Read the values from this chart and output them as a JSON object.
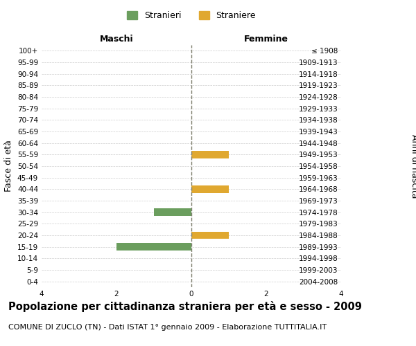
{
  "age_groups": [
    "100+",
    "95-99",
    "90-94",
    "85-89",
    "80-84",
    "75-79",
    "70-74",
    "65-69",
    "60-64",
    "55-59",
    "50-54",
    "45-49",
    "40-44",
    "35-39",
    "30-34",
    "25-29",
    "20-24",
    "15-19",
    "10-14",
    "5-9",
    "0-4"
  ],
  "birth_years": [
    "≤ 1908",
    "1909-1913",
    "1914-1918",
    "1919-1923",
    "1924-1928",
    "1929-1933",
    "1934-1938",
    "1939-1943",
    "1944-1948",
    "1949-1953",
    "1954-1958",
    "1959-1963",
    "1964-1968",
    "1969-1973",
    "1974-1978",
    "1979-1983",
    "1984-1988",
    "1989-1993",
    "1994-1998",
    "1999-2003",
    "2004-2008"
  ],
  "maschi_stranieri": [
    0,
    0,
    0,
    0,
    0,
    0,
    0,
    0,
    0,
    0,
    0,
    0,
    0,
    0,
    1,
    0,
    0,
    2,
    0,
    0,
    0
  ],
  "femmine_straniere": [
    0,
    0,
    0,
    0,
    0,
    0,
    0,
    0,
    0,
    1,
    0,
    0,
    1,
    0,
    0,
    0,
    1,
    0,
    0,
    0,
    0
  ],
  "color_maschi": "#6b9e5e",
  "color_femmine": "#e0a830",
  "xlim": 4,
  "title": "Popolazione per cittadinanza straniera per età e sesso - 2009",
  "subtitle": "COMUNE DI ZUCLO (TN) - Dati ISTAT 1° gennaio 2009 - Elaborazione TUTTITALIA.IT",
  "ylabel_left": "Fasce di età",
  "ylabel_right": "Anni di nascita",
  "label_maschi": "Maschi",
  "label_femmine": "Femmine",
  "legend_maschi": "Stranieri",
  "legend_femmine": "Straniere",
  "background_color": "#ffffff",
  "grid_color": "#cccccc",
  "center_line_color": "#808070",
  "tick_fontsize": 7.5,
  "label_fontsize": 9,
  "title_fontsize": 10.5,
  "subtitle_fontsize": 8
}
